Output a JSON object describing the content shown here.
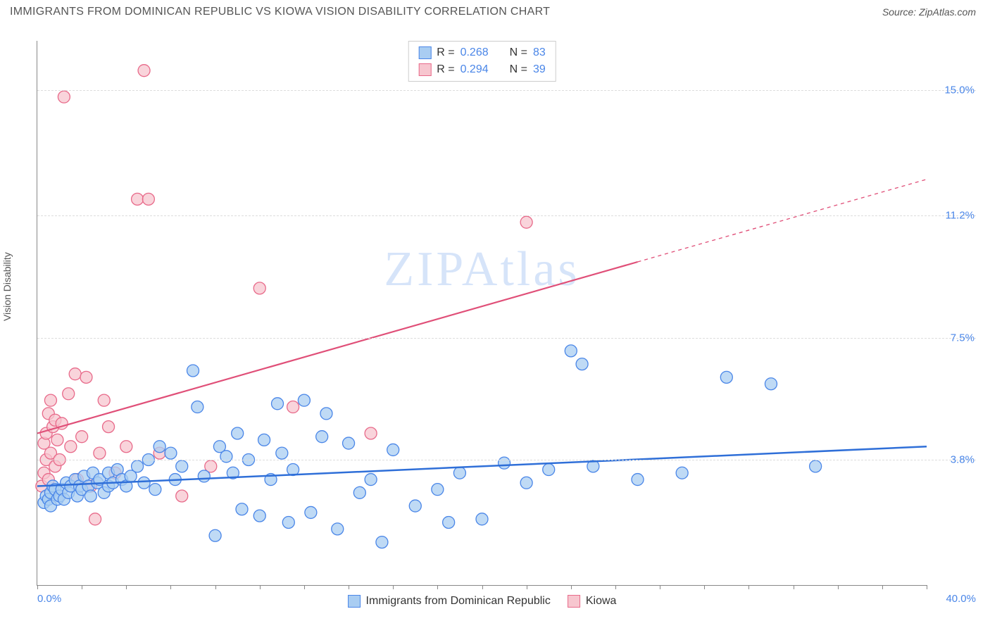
{
  "title": "IMMIGRANTS FROM DOMINICAN REPUBLIC VS KIOWA VISION DISABILITY CORRELATION CHART",
  "source_label": "Source: ",
  "source_name": "ZipAtlas.com",
  "watermark": "ZIPAtlas",
  "ylabel": "Vision Disability",
  "chart": {
    "type": "scatter",
    "xlim": [
      0,
      40
    ],
    "ylim": [
      0,
      16.5
    ],
    "x_ticks_minor_step": 2,
    "x_tick_labels": [
      {
        "x": 0,
        "label": "0.0%"
      },
      {
        "x": 40,
        "label": "40.0%"
      }
    ],
    "y_gridlines": [
      3.8,
      7.5,
      11.2,
      15.0
    ],
    "y_tick_labels": [
      {
        "y": 3.8,
        "label": "3.8%"
      },
      {
        "y": 7.5,
        "label": "7.5%"
      },
      {
        "y": 11.2,
        "label": "11.2%"
      },
      {
        "y": 15.0,
        "label": "15.0%"
      }
    ],
    "background_color": "#ffffff",
    "grid_color": "#dddddd",
    "axis_color": "#888888",
    "series": [
      {
        "name": "Immigrants from Dominican Republic",
        "fill": "#a9cdf2",
        "stroke": "#4a86e8",
        "marker_radius": 8.5,
        "marker_opacity": 0.75,
        "trend": {
          "x1": 0,
          "y1": 3.0,
          "x2": 40,
          "y2": 4.2,
          "color": "#2f6fd8",
          "width": 2.5,
          "dash_after_x": null
        },
        "R": "0.268",
        "N": "83",
        "points": [
          [
            0.3,
            2.5
          ],
          [
            0.4,
            2.7
          ],
          [
            0.5,
            2.6
          ],
          [
            0.6,
            2.8
          ],
          [
            0.6,
            2.4
          ],
          [
            0.7,
            3.0
          ],
          [
            0.8,
            2.9
          ],
          [
            0.9,
            2.6
          ],
          [
            1.0,
            2.7
          ],
          [
            1.1,
            2.9
          ],
          [
            1.2,
            2.6
          ],
          [
            1.3,
            3.1
          ],
          [
            1.4,
            2.8
          ],
          [
            1.5,
            3.0
          ],
          [
            1.7,
            3.2
          ],
          [
            1.8,
            2.7
          ],
          [
            1.9,
            3.0
          ],
          [
            2.0,
            2.9
          ],
          [
            2.1,
            3.3
          ],
          [
            2.3,
            3.0
          ],
          [
            2.4,
            2.7
          ],
          [
            2.5,
            3.4
          ],
          [
            2.7,
            3.1
          ],
          [
            2.8,
            3.2
          ],
          [
            3.0,
            2.8
          ],
          [
            3.2,
            3.4
          ],
          [
            3.2,
            3.0
          ],
          [
            3.4,
            3.1
          ],
          [
            3.6,
            3.5
          ],
          [
            3.8,
            3.2
          ],
          [
            4.0,
            3.0
          ],
          [
            4.2,
            3.3
          ],
          [
            4.5,
            3.6
          ],
          [
            4.8,
            3.1
          ],
          [
            5.0,
            3.8
          ],
          [
            5.3,
            2.9
          ],
          [
            5.5,
            4.2
          ],
          [
            6.0,
            4.0
          ],
          [
            6.2,
            3.2
          ],
          [
            6.5,
            3.6
          ],
          [
            7.0,
            6.5
          ],
          [
            7.2,
            5.4
          ],
          [
            7.5,
            3.3
          ],
          [
            8.0,
            1.5
          ],
          [
            8.2,
            4.2
          ],
          [
            8.5,
            3.9
          ],
          [
            8.8,
            3.4
          ],
          [
            9.0,
            4.6
          ],
          [
            9.2,
            2.3
          ],
          [
            9.5,
            3.8
          ],
          [
            10.0,
            2.1
          ],
          [
            10.2,
            4.4
          ],
          [
            10.5,
            3.2
          ],
          [
            10.8,
            5.5
          ],
          [
            11.0,
            4.0
          ],
          [
            11.3,
            1.9
          ],
          [
            11.5,
            3.5
          ],
          [
            12.0,
            5.6
          ],
          [
            12.3,
            2.2
          ],
          [
            12.8,
            4.5
          ],
          [
            13.0,
            5.2
          ],
          [
            13.5,
            1.7
          ],
          [
            14.0,
            4.3
          ],
          [
            14.5,
            2.8
          ],
          [
            15.0,
            3.2
          ],
          [
            15.5,
            1.3
          ],
          [
            16.0,
            4.1
          ],
          [
            17.0,
            2.4
          ],
          [
            18.0,
            2.9
          ],
          [
            18.5,
            1.9
          ],
          [
            19.0,
            3.4
          ],
          [
            20.0,
            2.0
          ],
          [
            21.0,
            3.7
          ],
          [
            22.0,
            3.1
          ],
          [
            23.0,
            3.5
          ],
          [
            24.0,
            7.1
          ],
          [
            24.5,
            6.7
          ],
          [
            25.0,
            3.6
          ],
          [
            27.0,
            3.2
          ],
          [
            29.0,
            3.4
          ],
          [
            31.0,
            6.3
          ],
          [
            33.0,
            6.1
          ],
          [
            35.0,
            3.6
          ]
        ]
      },
      {
        "name": "Kiowa",
        "fill": "#f7c6cf",
        "stroke": "#e86a8a",
        "marker_radius": 8.5,
        "marker_opacity": 0.75,
        "trend": {
          "x1": 0,
          "y1": 4.6,
          "x2": 40,
          "y2": 12.3,
          "color": "#e04f78",
          "width": 2.2,
          "dash_after_x": 27
        },
        "R": "0.294",
        "N": "39",
        "points": [
          [
            0.2,
            3.0
          ],
          [
            0.3,
            3.4
          ],
          [
            0.3,
            4.3
          ],
          [
            0.4,
            3.8
          ],
          [
            0.4,
            4.6
          ],
          [
            0.5,
            3.2
          ],
          [
            0.5,
            5.2
          ],
          [
            0.6,
            4.0
          ],
          [
            0.6,
            5.6
          ],
          [
            0.7,
            4.8
          ],
          [
            0.8,
            3.6
          ],
          [
            0.8,
            5.0
          ],
          [
            0.9,
            4.4
          ],
          [
            1.0,
            3.8
          ],
          [
            1.1,
            4.9
          ],
          [
            1.2,
            14.8
          ],
          [
            1.4,
            5.8
          ],
          [
            1.5,
            4.2
          ],
          [
            1.7,
            6.4
          ],
          [
            1.8,
            3.2
          ],
          [
            2.0,
            4.5
          ],
          [
            2.2,
            6.3
          ],
          [
            2.4,
            3.0
          ],
          [
            2.6,
            2.0
          ],
          [
            2.8,
            4.0
          ],
          [
            3.0,
            5.6
          ],
          [
            3.2,
            4.8
          ],
          [
            3.5,
            3.4
          ],
          [
            4.0,
            4.2
          ],
          [
            4.5,
            11.7
          ],
          [
            4.8,
            15.6
          ],
          [
            5.0,
            11.7
          ],
          [
            5.5,
            4.0
          ],
          [
            6.5,
            2.7
          ],
          [
            7.8,
            3.6
          ],
          [
            10.0,
            9.0
          ],
          [
            11.5,
            5.4
          ],
          [
            15.0,
            4.6
          ],
          [
            22.0,
            11.0
          ]
        ]
      }
    ]
  },
  "legend_bottom": [
    {
      "swatch_fill": "#a9cdf2",
      "swatch_stroke": "#4a86e8",
      "label": "Immigrants from Dominican Republic"
    },
    {
      "swatch_fill": "#f7c6cf",
      "swatch_stroke": "#e86a8a",
      "label": "Kiowa"
    }
  ]
}
